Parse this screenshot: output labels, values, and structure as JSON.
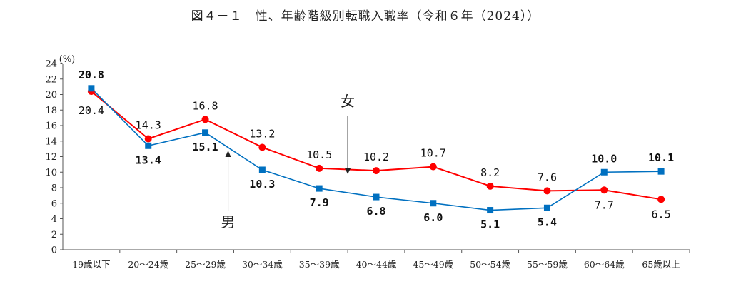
{
  "title": "図４－１　性、年齢階級別転職入職率（令和６年（2024））",
  "chart_data": {
    "type": "line",
    "title": "図４－１　性、年齢階級別転職入職率（令和６年（2024））",
    "ylabel": "(%)",
    "xlabel": "",
    "ylim": [
      0,
      24
    ],
    "yticks": [
      0,
      2,
      4,
      6,
      8,
      10,
      12,
      14,
      16,
      18,
      20,
      22,
      24
    ],
    "grid": false,
    "categories": [
      "19歳以下",
      "20～24歳",
      "25～29歳",
      "30～34歳",
      "35～39歳",
      "40～44歳",
      "45～49歳",
      "50～54歳",
      "55～59歳",
      "60～64歳",
      "65歳以上"
    ],
    "series": [
      {
        "name": "女",
        "color": "#ff0000",
        "marker": "circle",
        "values": [
          20.4,
          14.3,
          16.8,
          13.2,
          10.5,
          10.2,
          10.7,
          8.2,
          7.6,
          7.7,
          6.5
        ],
        "labels": [
          "20.4",
          "14.3",
          "16.8",
          "13.2",
          "10.5",
          "10.2",
          "10.7",
          "8.2",
          "7.6",
          "7.7",
          "6.5"
        ]
      },
      {
        "name": "男",
        "color": "#0070c0",
        "marker": "square",
        "values": [
          20.8,
          13.4,
          15.1,
          10.3,
          7.9,
          6.8,
          6.0,
          5.1,
          5.4,
          10.0,
          10.1
        ],
        "labels": [
          "20.8",
          "13.4",
          "15.1",
          "10.3",
          "7.9",
          "6.8",
          "6.0",
          "5.1",
          "5.4",
          "10.0",
          "10.1"
        ]
      }
    ],
    "annotations": [
      {
        "text": "女",
        "series": "女"
      },
      {
        "text": "男",
        "series": "男"
      }
    ]
  }
}
